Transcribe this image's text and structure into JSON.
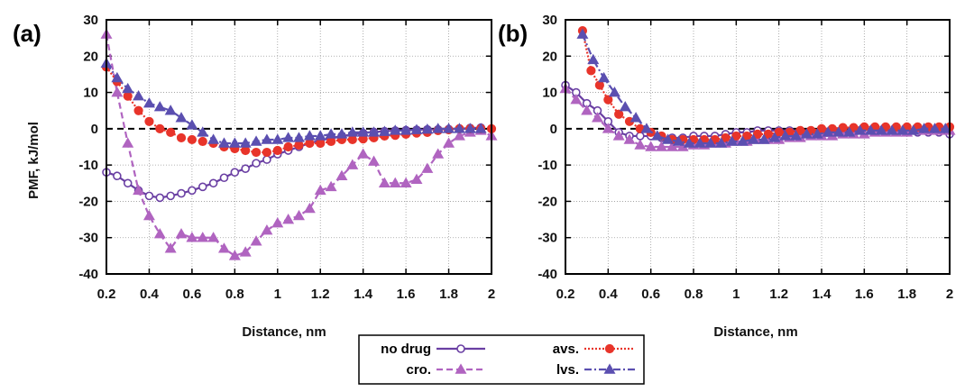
{
  "chart_data": [
    {
      "type": "line",
      "panel_label": "(a)",
      "xlabel": "Distance, nm",
      "ylabel": "PMF, kJ/mol",
      "xlim": [
        0.2,
        2
      ],
      "ylim": [
        -40,
        30
      ],
      "xticks": [
        "0.2",
        "0.4",
        "0.6",
        "0.8",
        "1",
        "1.2",
        "1.4",
        "1.6",
        "1.8",
        "2"
      ],
      "yticks": [
        "30",
        "20",
        "10",
        "0",
        "-10",
        "-20",
        "-30",
        "-40"
      ],
      "grid": true,
      "reference_line": 0,
      "series": [
        {
          "name": "no drug",
          "color": "#6a3fa3",
          "marker": "circle-open",
          "dash": "solid",
          "x": [
            0.2,
            0.25,
            0.3,
            0.35,
            0.4,
            0.45,
            0.5,
            0.55,
            0.6,
            0.65,
            0.7,
            0.75,
            0.8,
            0.85,
            0.9,
            0.95,
            1.0,
            1.05,
            1.1,
            1.15,
            1.2,
            1.25,
            1.3,
            1.35,
            1.4,
            1.45,
            1.5,
            1.55,
            1.6,
            1.65,
            1.7,
            1.75,
            1.8,
            1.85,
            1.9,
            1.95
          ],
          "y": [
            -12,
            -13,
            -15,
            -17,
            -18.5,
            -19,
            -18.5,
            -17.8,
            -17,
            -16,
            -15,
            -13.5,
            -12,
            -11,
            -9.5,
            -8.5,
            -7,
            -6,
            -5,
            -4,
            -3.2,
            -2.6,
            -2,
            -1.6,
            -1.2,
            -0.9,
            -0.7,
            -0.5,
            -0.4,
            -0.3,
            -0.2,
            -0.2,
            -0.1,
            0,
            0.2,
            0.3
          ]
        },
        {
          "name": "cro.",
          "color": "#b064c0",
          "marker": "triangle",
          "dash": "dashed",
          "x": [
            0.2,
            0.25,
            0.3,
            0.35,
            0.4,
            0.45,
            0.5,
            0.55,
            0.6,
            0.65,
            0.7,
            0.75,
            0.8,
            0.85,
            0.9,
            0.95,
            1.0,
            1.05,
            1.1,
            1.15,
            1.2,
            1.25,
            1.3,
            1.35,
            1.4,
            1.45,
            1.5,
            1.55,
            1.6,
            1.65,
            1.7,
            1.75,
            1.8,
            1.85,
            1.9,
            1.95,
            2.0
          ],
          "y": [
            26,
            10,
            -4,
            -17,
            -24,
            -29,
            -33,
            -29,
            -30,
            -30,
            -30,
            -33,
            -35,
            -34,
            -31,
            -28,
            -26,
            -25,
            -24,
            -22,
            -17,
            -16,
            -13,
            -10,
            -7,
            -9,
            -15,
            -15,
            -15,
            -14,
            -11,
            -7,
            -4,
            -2,
            -1,
            -0.5,
            -2
          ]
        },
        {
          "name": "avs.",
          "color": "#e8342a",
          "marker": "circle-filled",
          "dash": "dotted",
          "x": [
            0.2,
            0.25,
            0.3,
            0.35,
            0.4,
            0.45,
            0.5,
            0.55,
            0.6,
            0.65,
            0.7,
            0.75,
            0.8,
            0.85,
            0.9,
            0.95,
            1.0,
            1.05,
            1.1,
            1.15,
            1.2,
            1.25,
            1.3,
            1.35,
            1.4,
            1.45,
            1.5,
            1.55,
            1.6,
            1.65,
            1.7,
            1.75,
            1.8,
            1.85,
            1.9,
            1.95,
            2.0
          ],
          "y": [
            17,
            13,
            9,
            5,
            2,
            0,
            -1,
            -2.5,
            -3,
            -3.5,
            -4,
            -5,
            -5.5,
            -6,
            -6.5,
            -6.5,
            -6,
            -5,
            -4.5,
            -4,
            -4,
            -3.5,
            -3,
            -3,
            -2.8,
            -2.5,
            -2,
            -1.8,
            -1.5,
            -1.2,
            -1,
            -0.5,
            -0.3,
            0,
            0,
            0,
            0
          ]
        },
        {
          "name": "lvs.",
          "color": "#5b4fb0",
          "marker": "triangle",
          "dash": "dashdot",
          "x": [
            0.2,
            0.25,
            0.3,
            0.35,
            0.4,
            0.45,
            0.5,
            0.55,
            0.6,
            0.65,
            0.7,
            0.75,
            0.8,
            0.85,
            0.9,
            0.95,
            1.0,
            1.05,
            1.1,
            1.15,
            1.2,
            1.25,
            1.3,
            1.35,
            1.4,
            1.45,
            1.5,
            1.55,
            1.6,
            1.65,
            1.7,
            1.75,
            1.8,
            1.85,
            1.9,
            1.95
          ],
          "y": [
            18,
            14,
            11,
            9,
            7,
            6,
            5,
            3,
            1,
            -1,
            -3,
            -4,
            -4,
            -4,
            -3.5,
            -3,
            -3,
            -2.5,
            -2.5,
            -2,
            -2,
            -1.5,
            -1.5,
            -1,
            -1,
            -1,
            -0.8,
            -0.5,
            -0.5,
            -0.3,
            -0.2,
            0,
            0,
            0,
            0,
            0
          ]
        }
      ]
    },
    {
      "type": "line",
      "panel_label": "(b)",
      "xlabel": "Distance, nm",
      "ylabel": "",
      "xlim": [
        0.2,
        2
      ],
      "ylim": [
        -40,
        30
      ],
      "xticks": [
        "0.2",
        "0.4",
        "0.6",
        "0.8",
        "1",
        "1.2",
        "1.4",
        "1.6",
        "1.8",
        "2"
      ],
      "yticks": [
        "30",
        "20",
        "10",
        "0",
        "-10",
        "-20",
        "-30",
        "-40"
      ],
      "grid": true,
      "reference_line": 0,
      "series": [
        {
          "name": "no drug",
          "color": "#6a3fa3",
          "marker": "circle-open",
          "dash": "solid",
          "x": [
            0.2,
            0.25,
            0.3,
            0.35,
            0.4,
            0.45,
            0.5,
            0.55,
            0.6,
            0.65,
            0.7,
            0.75,
            0.8,
            0.85,
            0.9,
            0.95,
            1.0,
            1.05,
            1.1,
            1.15,
            1.2,
            1.25,
            1.3,
            1.35,
            1.4,
            1.45,
            1.5,
            1.55,
            1.6,
            1.65,
            1.7,
            1.75,
            1.8,
            1.85,
            1.9,
            1.95,
            2.0
          ],
          "y": [
            12,
            10,
            7,
            5,
            2,
            -1,
            -2,
            -2,
            -2,
            -2.5,
            -2.5,
            -2.5,
            -2,
            -2,
            -2,
            -1.5,
            -1,
            -1,
            -0.5,
            -0.5,
            -0.5,
            -0.5,
            -0.5,
            -0.5,
            -0.5,
            -0.5,
            -0.5,
            -0.5,
            -0.5,
            -0.5,
            -0.5,
            -0.5,
            -1,
            -1,
            -1,
            -1,
            -1.5
          ]
        },
        {
          "name": "cro.",
          "color": "#b064c0",
          "marker": "triangle",
          "dash": "dashed",
          "x": [
            0.2,
            0.25,
            0.3,
            0.35,
            0.4,
            0.45,
            0.5,
            0.55,
            0.6,
            0.65,
            0.7,
            0.75,
            0.8,
            0.85,
            0.9,
            0.95,
            1.0,
            1.05,
            1.1,
            1.15,
            1.2,
            1.25,
            1.3,
            1.35,
            1.4,
            1.45,
            1.5,
            1.55,
            1.6,
            1.65,
            1.7,
            1.75,
            1.8,
            1.85,
            1.9,
            1.95,
            2.0
          ],
          "y": [
            11,
            8,
            5,
            3,
            0,
            -2,
            -3,
            -4.5,
            -5,
            -5,
            -5,
            -5,
            -4.5,
            -4.5,
            -4,
            -4,
            -3.5,
            -3.5,
            -3,
            -3,
            -3,
            -2.5,
            -2.5,
            -2,
            -2,
            -2,
            -1.5,
            -1.5,
            -1.5,
            -1,
            -1,
            -1,
            -1,
            -0.5,
            -0.5,
            -0.5,
            -0.5
          ]
        },
        {
          "name": "avs.",
          "color": "#e8342a",
          "marker": "circle-filled",
          "dash": "dotted",
          "x": [
            0.28,
            0.32,
            0.36,
            0.4,
            0.45,
            0.5,
            0.55,
            0.6,
            0.65,
            0.7,
            0.75,
            0.8,
            0.85,
            0.9,
            0.95,
            1.0,
            1.05,
            1.1,
            1.15,
            1.2,
            1.25,
            1.3,
            1.35,
            1.4,
            1.45,
            1.5,
            1.55,
            1.6,
            1.65,
            1.7,
            1.75,
            1.8,
            1.85,
            1.9,
            1.95,
            2.0
          ],
          "y": [
            27,
            16,
            12,
            8,
            4,
            2,
            0,
            -1,
            -2,
            -3,
            -3,
            -3,
            -3,
            -3,
            -2.5,
            -2,
            -2,
            -1.5,
            -1.5,
            -1,
            -1,
            -0.5,
            -0.5,
            0,
            0,
            0.3,
            0.3,
            0.5,
            0.5,
            0.5,
            0.5,
            0.5,
            0.5,
            0.5,
            0.5,
            0.5
          ]
        },
        {
          "name": "lvs.",
          "color": "#5b4fb0",
          "marker": "triangle",
          "dash": "dashdot",
          "x": [
            0.28,
            0.33,
            0.38,
            0.43,
            0.48,
            0.53,
            0.58,
            0.63,
            0.68,
            0.73,
            0.78,
            0.83,
            0.88,
            0.93,
            0.98,
            1.03,
            1.08,
            1.13,
            1.18,
            1.23,
            1.28,
            1.33,
            1.38,
            1.43,
            1.48,
            1.53,
            1.58,
            1.63,
            1.68,
            1.73,
            1.78,
            1.83,
            1.88,
            1.93,
            1.98
          ],
          "y": [
            26,
            19,
            14,
            10,
            6,
            3,
            0,
            -2,
            -3,
            -3.5,
            -4,
            -4,
            -4,
            -4,
            -3.5,
            -3.5,
            -3,
            -3,
            -2.5,
            -2,
            -2,
            -1.5,
            -1.5,
            -1,
            -1,
            -1,
            -0.5,
            -0.5,
            -0.5,
            -0.5,
            -0.5,
            -0.5,
            0,
            0,
            0
          ]
        }
      ]
    }
  ],
  "legend": {
    "items": [
      {
        "label": "no drug",
        "series": "no drug"
      },
      {
        "label": "cro.",
        "series": "cro."
      },
      {
        "label": "avs.",
        "series": "avs."
      },
      {
        "label": "lvs.",
        "series": "lvs."
      }
    ]
  }
}
